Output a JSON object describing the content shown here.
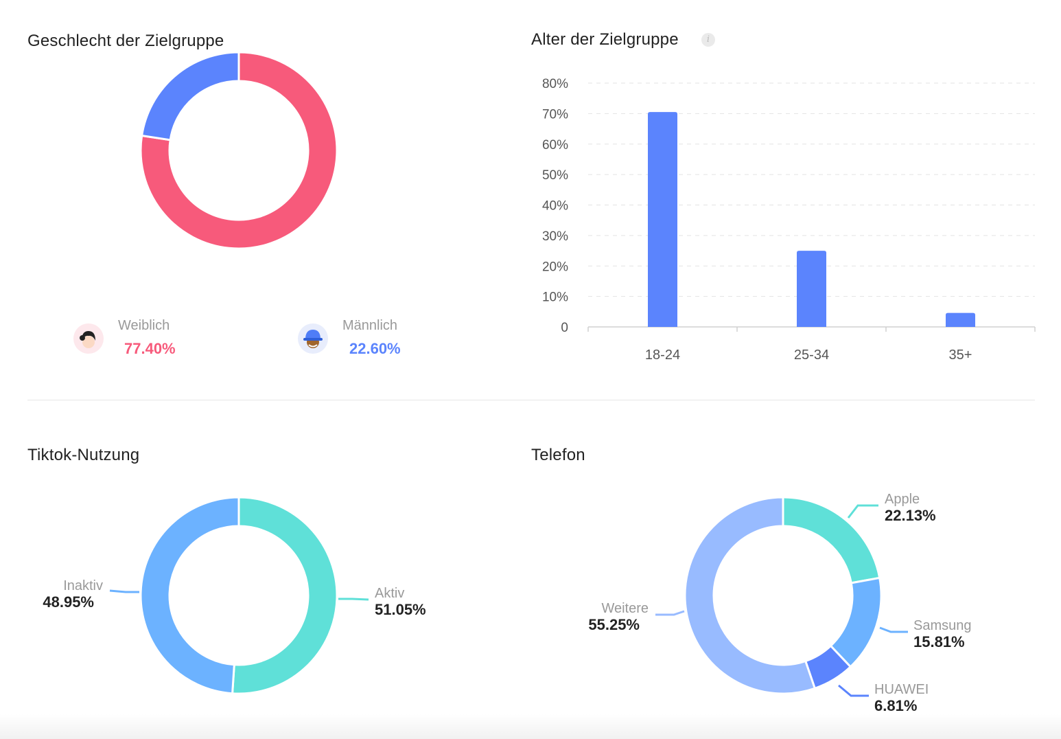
{
  "gender": {
    "title": "Geschlecht der Zielgruppe",
    "chart_data": {
      "type": "pie",
      "title": "Geschlecht der Zielgruppe",
      "slices": [
        {
          "name": "Weiblich",
          "value": 77.4,
          "label": "77.40%",
          "color": "#f75a7b"
        },
        {
          "name": "Männlich",
          "value": 22.6,
          "label": "22.60%",
          "color": "#5b84fd"
        }
      ]
    }
  },
  "age": {
    "title": "Alter der Zielgruppe",
    "info_icon": "info-icon",
    "chart_data": {
      "type": "bar",
      "title": "Alter der Zielgruppe",
      "categories": [
        "18-24",
        "25-34",
        "35+"
      ],
      "values": [
        70.5,
        25,
        4.6
      ],
      "ylim": [
        0,
        80
      ],
      "yticks": [
        "0",
        "10%",
        "20%",
        "30%",
        "40%",
        "50%",
        "60%",
        "70%",
        "80%"
      ],
      "bar_color": "#5b84fd",
      "grid": true
    }
  },
  "usage": {
    "title": "Tiktok-Nutzung",
    "chart_data": {
      "type": "pie",
      "title": "Tiktok-Nutzung",
      "slices": [
        {
          "name": "Aktiv",
          "value": 51.05,
          "label": "51.05%",
          "color": "#5fe0d8"
        },
        {
          "name": "Inaktiv",
          "value": 48.95,
          "label": "48.95%",
          "color": "#6cb2ff"
        }
      ]
    }
  },
  "phone": {
    "title": "Telefon",
    "chart_data": {
      "type": "pie",
      "title": "Telefon",
      "slices": [
        {
          "name": "Apple",
          "value": 22.13,
          "label": "22.13%",
          "color": "#5fe0d8"
        },
        {
          "name": "Samsung",
          "value": 15.81,
          "label": "15.81%",
          "color": "#6cb2ff"
        },
        {
          "name": "HUAWEI",
          "value": 6.81,
          "label": "6.81%",
          "color": "#5b84fd"
        },
        {
          "name": "Weitere",
          "value": 55.25,
          "label": "55.25%",
          "color": "#98bbff"
        }
      ]
    }
  }
}
